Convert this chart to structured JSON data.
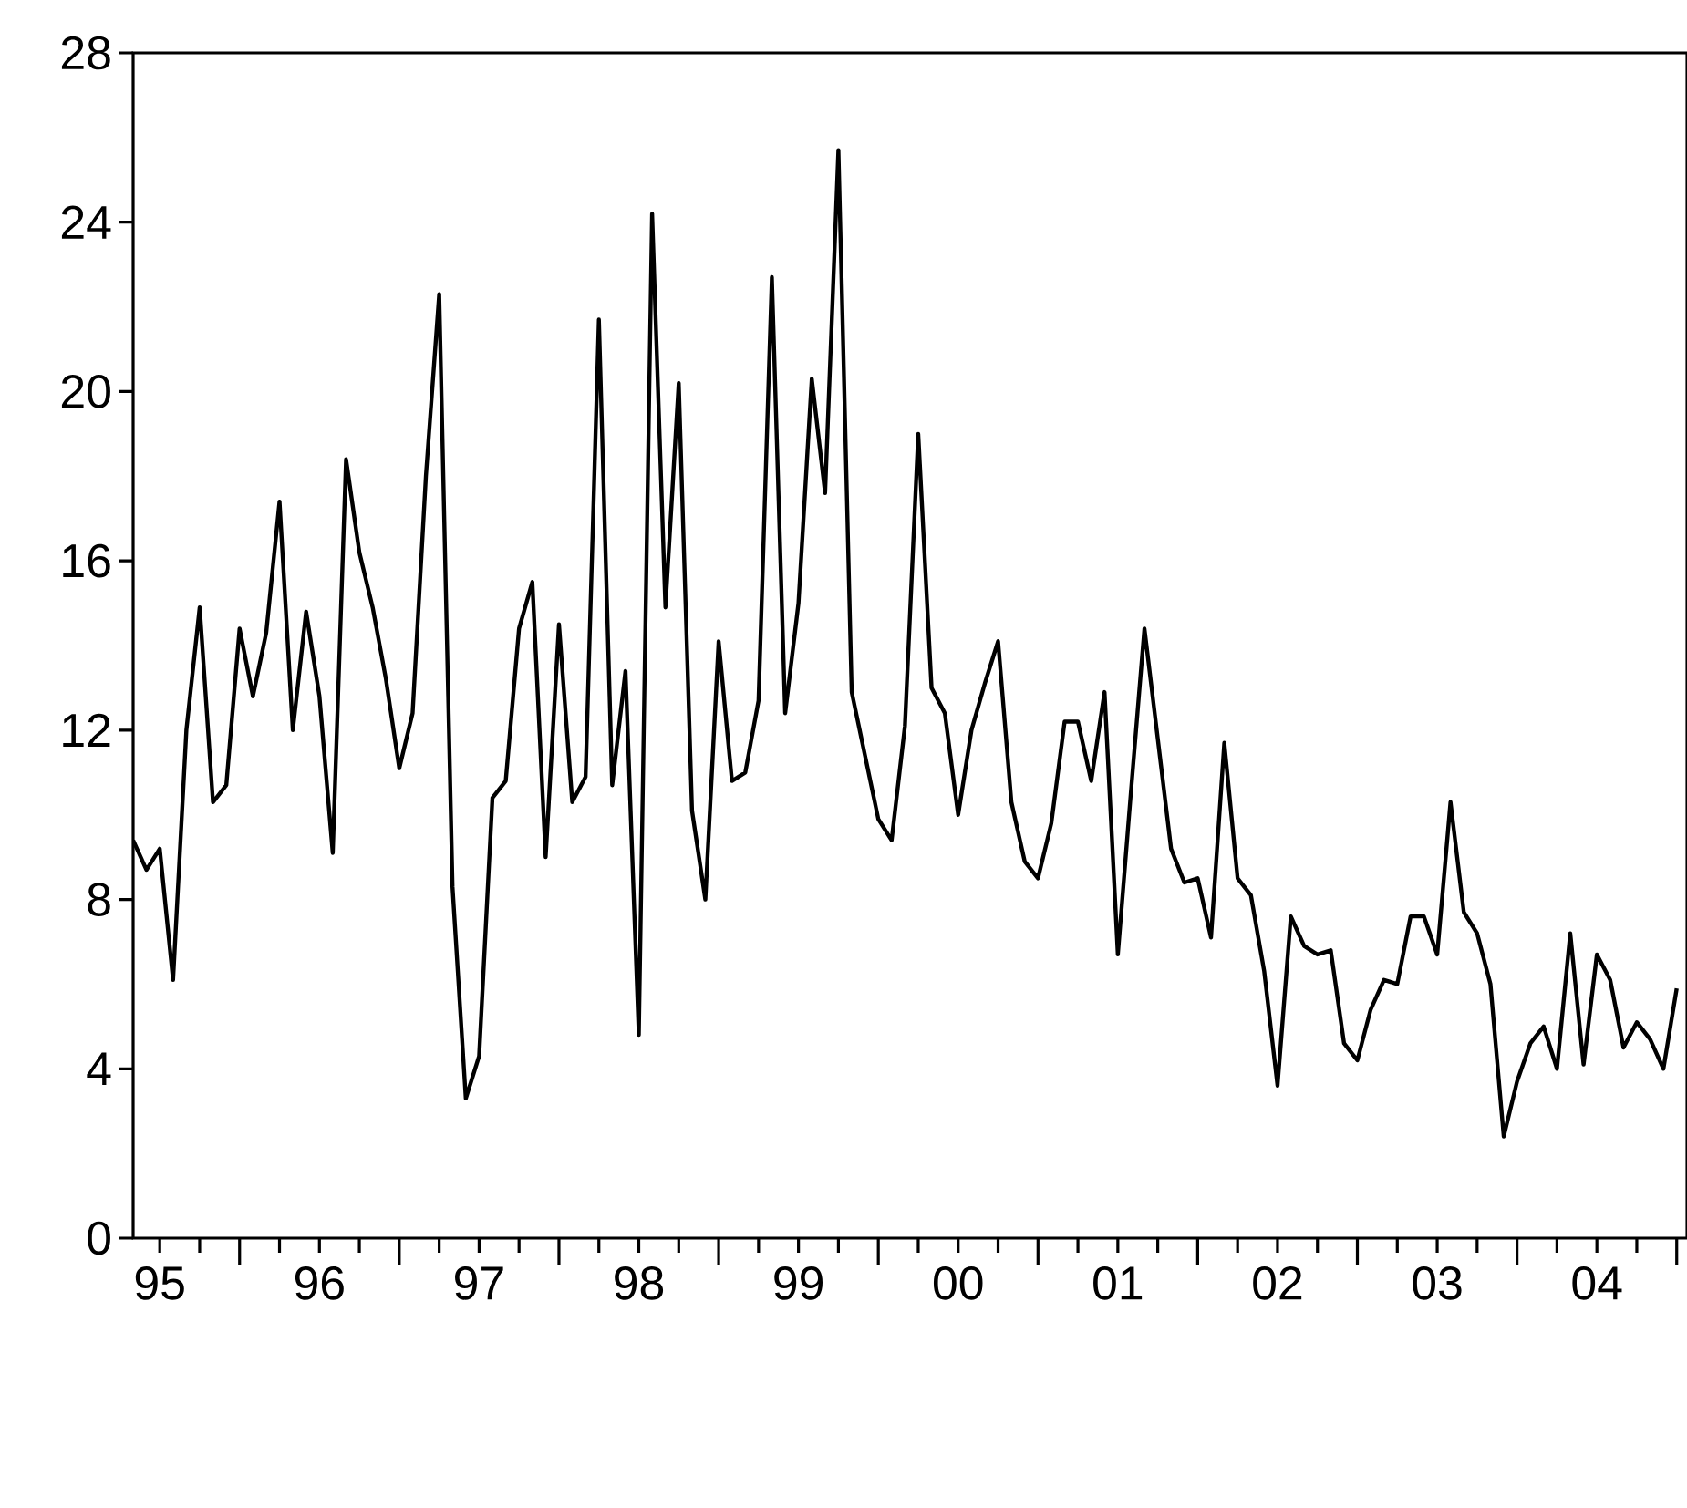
{
  "chart_data": {
    "type": "line",
    "x": [
      "1995-05",
      "1995-06",
      "1995-07",
      "1995-08",
      "1995-09",
      "1995-10",
      "1995-11",
      "1995-12",
      "1996-01",
      "1996-02",
      "1996-03",
      "1996-04",
      "1996-05",
      "1996-06",
      "1996-07",
      "1996-08",
      "1996-09",
      "1996-10",
      "1996-11",
      "1996-12",
      "1997-01",
      "1997-02",
      "1997-03",
      "1997-04",
      "1997-05",
      "1997-06",
      "1997-07",
      "1997-08",
      "1997-09",
      "1997-10",
      "1997-11",
      "1997-12",
      "1998-01",
      "1998-02",
      "1998-03",
      "1998-04",
      "1998-05",
      "1998-06",
      "1998-07",
      "1998-08",
      "1998-09",
      "1998-10",
      "1998-11",
      "1998-12",
      "1999-01",
      "1999-02",
      "1999-03",
      "1999-04",
      "1999-05",
      "1999-06",
      "1999-07",
      "1999-08",
      "1999-09",
      "1999-10",
      "1999-11",
      "1999-12",
      "2000-01",
      "2000-02",
      "2000-03",
      "2000-04",
      "2000-05",
      "2000-06",
      "2000-07",
      "2000-08",
      "2000-09",
      "2000-10",
      "2000-11",
      "2000-12",
      "2001-01",
      "2001-02",
      "2001-03",
      "2001-04",
      "2001-05",
      "2001-06",
      "2001-07",
      "2001-08",
      "2001-09",
      "2001-10",
      "2001-11",
      "2001-12",
      "2002-01",
      "2002-02",
      "2002-03",
      "2002-04",
      "2002-05",
      "2002-06",
      "2002-07",
      "2002-08",
      "2002-09",
      "2002-10",
      "2002-11",
      "2002-12",
      "2003-01",
      "2003-02",
      "2003-03",
      "2003-04",
      "2003-05",
      "2003-06",
      "2003-07",
      "2003-08",
      "2003-09",
      "2003-10",
      "2003-11",
      "2003-12",
      "2004-01",
      "2004-02",
      "2004-03",
      "2004-04",
      "2004-05",
      "2004-06",
      "2004-07",
      "2004-08",
      "2004-09",
      "2004-10",
      "2004-11",
      "2004-12",
      "2005-01"
    ],
    "series": [
      {
        "color": "#000000",
        "values": [
          9.4,
          8.7,
          9.2,
          6.1,
          12.0,
          14.9,
          10.3,
          10.7,
          14.4,
          12.8,
          14.3,
          17.4,
          12.0,
          14.8,
          12.8,
          9.1,
          18.4,
          16.2,
          14.9,
          13.2,
          11.1,
          12.4,
          18.0,
          22.3,
          8.3,
          3.3,
          4.3,
          10.4,
          10.8,
          14.4,
          15.5,
          9.0,
          14.5,
          10.3,
          10.9,
          21.7,
          10.7,
          13.4,
          4.8,
          24.2,
          14.9,
          20.2,
          10.1,
          8.0,
          14.1,
          10.8,
          11.0,
          12.7,
          22.7,
          12.4,
          15.0,
          20.3,
          17.6,
          25.7,
          12.9,
          11.4,
          9.9,
          9.4,
          12.1,
          19.0,
          13.0,
          12.4,
          10.0,
          12.0,
          13.1,
          14.1,
          10.3,
          8.9,
          8.5,
          9.8,
          12.2,
          12.2,
          10.8,
          12.9,
          6.7,
          10.6,
          14.4,
          11.8,
          9.2,
          8.4,
          8.5,
          7.1,
          11.7,
          8.5,
          8.1,
          6.3,
          3.6,
          7.6,
          6.9,
          6.7,
          6.8,
          4.6,
          4.2,
          5.4,
          6.1,
          6.0,
          7.6,
          7.6,
          6.7,
          10.3,
          7.7,
          7.2,
          6.0,
          2.4,
          3.7,
          4.6,
          5.0,
          4.0,
          7.2,
          4.1,
          6.7,
          6.1,
          4.5,
          5.1,
          4.7,
          4.0,
          5.9
        ]
      }
    ],
    "xlim": [
      "1995-05",
      "2005-01-25"
    ],
    "xticks": [
      {
        "value": "1995-07",
        "label": "95"
      },
      {
        "value": "1995-10",
        "label": null
      },
      {
        "value": "1996-01",
        "label": null
      },
      {
        "value": "1996-04",
        "label": null
      },
      {
        "value": "1996-07",
        "label": "96"
      },
      {
        "value": "1996-10",
        "label": null
      },
      {
        "value": "1997-01",
        "label": null
      },
      {
        "value": "1997-04",
        "label": null
      },
      {
        "value": "1997-07",
        "label": "97"
      },
      {
        "value": "1997-10",
        "label": null
      },
      {
        "value": "1998-01",
        "label": null
      },
      {
        "value": "1998-04",
        "label": null
      },
      {
        "value": "1998-07",
        "label": "98"
      },
      {
        "value": "1998-10",
        "label": null
      },
      {
        "value": "1999-01",
        "label": null
      },
      {
        "value": "1999-04",
        "label": null
      },
      {
        "value": "1999-07",
        "label": "99"
      },
      {
        "value": "1999-10",
        "label": null
      },
      {
        "value": "2000-01",
        "label": null
      },
      {
        "value": "2000-04",
        "label": null
      },
      {
        "value": "2000-07",
        "label": "00"
      },
      {
        "value": "2000-10",
        "label": null
      },
      {
        "value": "2001-01",
        "label": null
      },
      {
        "value": "2001-04",
        "label": null
      },
      {
        "value": "2001-07",
        "label": "01"
      },
      {
        "value": "2001-10",
        "label": null
      },
      {
        "value": "2002-01",
        "label": null
      },
      {
        "value": "2002-04",
        "label": null
      },
      {
        "value": "2002-07",
        "label": "02"
      },
      {
        "value": "2002-10",
        "label": null
      },
      {
        "value": "2003-01",
        "label": null
      },
      {
        "value": "2003-04",
        "label": null
      },
      {
        "value": "2003-07",
        "label": "03"
      },
      {
        "value": "2003-10",
        "label": null
      },
      {
        "value": "2004-01",
        "label": null
      },
      {
        "value": "2004-04",
        "label": null
      },
      {
        "value": "2004-07",
        "label": "04"
      },
      {
        "value": "2004-10",
        "label": null
      },
      {
        "value": "2005-01",
        "label": null
      }
    ],
    "ylim": [
      0,
      28
    ],
    "yticks": [
      0,
      4,
      8,
      12,
      16,
      20,
      24,
      28
    ]
  }
}
